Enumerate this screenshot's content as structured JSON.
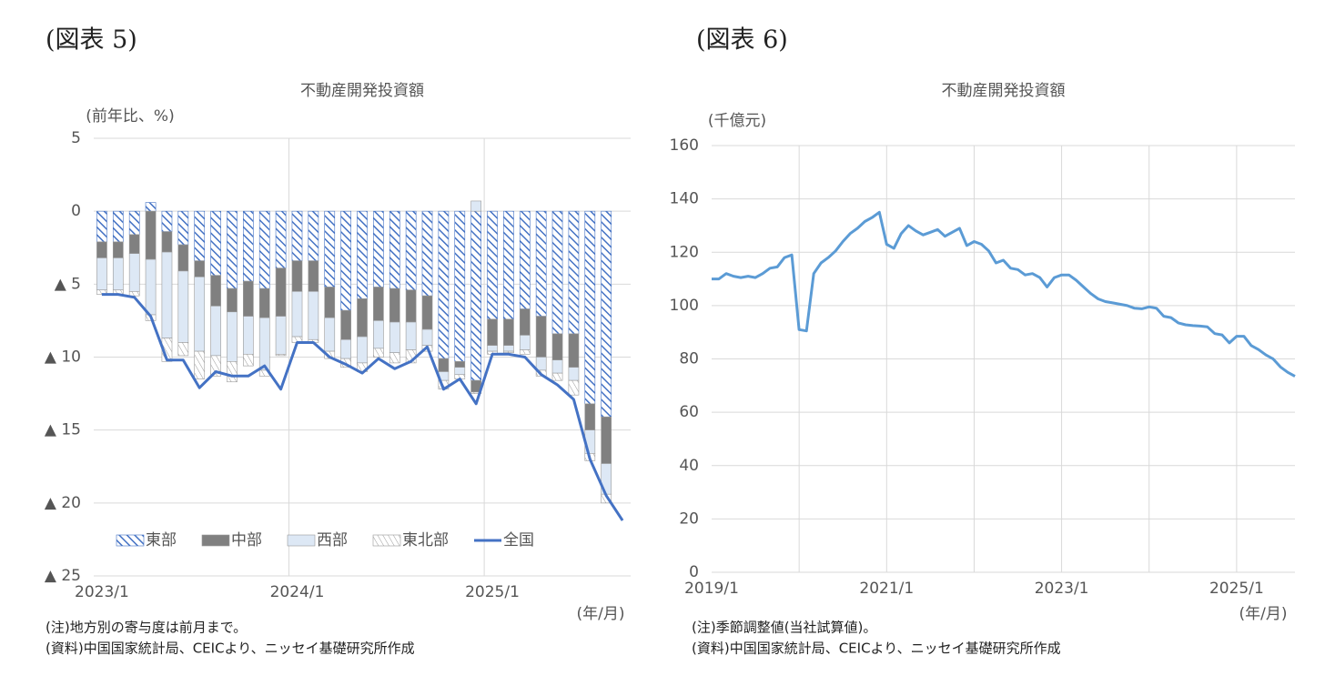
{
  "chart_data": [
    {
      "type": "bar",
      "figure_label": "(図表 5)",
      "title": "不動産開発投資額",
      "y_label": "(前年比、%)",
      "x_label": "(年/月)",
      "notes": [
        "(注)地方別の寄与度は前月まで。",
        "(資料)中国国家統計局、CEICより、ニッセイ基礎研究所作成"
      ],
      "categories": [
        "2023/1",
        null,
        null,
        null,
        null,
        null,
        null,
        null,
        null,
        null,
        null,
        null,
        "2024/1",
        null,
        null,
        null,
        null,
        null,
        null,
        null,
        null,
        null,
        null,
        null,
        "2025/1",
        null,
        null,
        null,
        null,
        null,
        null,
        null,
        null
      ],
      "series": [
        {
          "name": "東部",
          "color": "#4472c4",
          "fill_style": "hatch",
          "values": [
            -2.1,
            -2.1,
            -1.6,
            0.6,
            -1.4,
            -2.3,
            -3.4,
            -4.4,
            -5.3,
            -4.8,
            -5.3,
            -3.9,
            -3.4,
            -3.4,
            -5.2,
            -6.8,
            -6.0,
            -5.2,
            -5.3,
            -5.4,
            -5.8,
            -10.1,
            -10.3,
            -11.6,
            -7.4,
            -7.4,
            -6.7,
            -7.2,
            -8.4,
            -8.4,
            -13.2,
            -14.1,
            null
          ]
        },
        {
          "name": "中部",
          "color": "#808080",
          "fill_style": "solid",
          "values": [
            -1.1,
            -1.1,
            -1.3,
            -3.3,
            -1.4,
            -1.8,
            -1.1,
            -2.1,
            -1.6,
            -2.4,
            -2.0,
            -3.3,
            -2.1,
            -2.1,
            -2.1,
            -2.0,
            -2.6,
            -2.3,
            -2.3,
            -2.2,
            -2.3,
            -0.9,
            -0.4,
            -0.8,
            -1.8,
            -1.8,
            -1.8,
            -2.8,
            -1.8,
            -2.3,
            -1.8,
            -3.2,
            null
          ]
        },
        {
          "name": "西部",
          "color": "#dde8f5",
          "fill_style": "solid",
          "values": [
            -2.2,
            -2.2,
            -2.6,
            -3.8,
            -5.9,
            -4.9,
            -5.1,
            -3.4,
            -3.4,
            -2.6,
            -3.6,
            -2.6,
            -3.1,
            -3.3,
            -2.3,
            -1.3,
            -1.8,
            -1.9,
            -2.1,
            -1.9,
            -1.1,
            -0.6,
            -0.5,
            0.7,
            -0.4,
            -0.4,
            -1.0,
            -0.9,
            -0.9,
            -0.9,
            -1.6,
            -2.1,
            null
          ]
        },
        {
          "name": "東北部",
          "color": "#7f7f7f",
          "fill_style": "dots",
          "values": [
            -0.3,
            -0.3,
            -0.3,
            -0.4,
            -1.6,
            -0.9,
            -1.9,
            -1.4,
            -1.4,
            -0.8,
            -0.4,
            -0.1,
            -0.4,
            -0.2,
            -0.5,
            -0.6,
            -0.6,
            -0.6,
            -0.7,
            -0.9,
            -0.4,
            -0.6,
            -0.3,
            -0.1,
            -0.2,
            -0.1,
            -0.3,
            -0.4,
            -0.5,
            -1.0,
            -0.5,
            -0.6,
            null
          ]
        },
        {
          "name": "全国",
          "color": "#4472c4",
          "type": "line",
          "values": [
            -5.7,
            -5.7,
            -5.9,
            -7.2,
            -10.2,
            -10.2,
            -12.1,
            -11.0,
            -11.3,
            -11.3,
            -10.6,
            -12.2,
            -9.0,
            -9.0,
            -10.0,
            -10.5,
            -11.1,
            -10.1,
            -10.8,
            -10.3,
            -9.3,
            -12.2,
            -11.5,
            -13.2,
            -9.8,
            -9.8,
            -10.0,
            -11.2,
            -11.9,
            -12.9,
            -17.0,
            -19.5,
            -21.2
          ]
        }
      ],
      "ylim": [
        -25,
        5
      ],
      "yticks": [
        {
          "value": -25,
          "label": "▲ 25"
        },
        {
          "value": -20,
          "label": "▲ 20"
        },
        {
          "value": -15,
          "label": "▲ 15"
        },
        {
          "value": -10,
          "label": "▲ 10"
        },
        {
          "value": -5,
          "label": "▲ 5"
        },
        0,
        5
      ],
      "grid": true,
      "legend": "bottom-left"
    },
    {
      "type": "line",
      "figure_label": "(図表 6)",
      "title": "不動産開発投資額",
      "y_label": "(千億元)",
      "x_label": "(年/月)",
      "notes": [
        "(注)季節調整値(当社試算値)。",
        "(資料)中国国家統計局、CEICより、ニッセイ基礎研究所作成"
      ],
      "categories": [
        "2019/1",
        null,
        null,
        null,
        null,
        null,
        null,
        null,
        null,
        null,
        null,
        null,
        null,
        null,
        null,
        null,
        null,
        null,
        null,
        null,
        null,
        null,
        null,
        null,
        "2021/1",
        null,
        null,
        null,
        null,
        null,
        null,
        null,
        null,
        null,
        null,
        null,
        null,
        null,
        null,
        null,
        null,
        null,
        null,
        null,
        null,
        null,
        null,
        null,
        "2023/1",
        null,
        null,
        null,
        null,
        null,
        null,
        null,
        null,
        null,
        null,
        null,
        null,
        null,
        null,
        null,
        null,
        null,
        null,
        null,
        null,
        null,
        null,
        null,
        "2025/1",
        null,
        null,
        null,
        null,
        null,
        null,
        null,
        null
      ],
      "color": "#5b9bd5",
      "values": [
        110,
        110,
        112,
        111,
        110.5,
        111,
        110.5,
        112,
        114,
        114.5,
        118,
        119,
        91,
        90.5,
        112,
        116,
        118,
        120.5,
        124,
        127,
        129,
        131.5,
        133,
        135,
        123,
        121.5,
        127,
        130,
        128,
        126.5,
        127.5,
        128.5,
        126,
        127.5,
        129,
        122.5,
        124,
        123,
        120.5,
        116,
        117,
        114,
        113.5,
        111.5,
        112,
        110.5,
        107,
        110.5,
        111.5,
        111.5,
        109.5,
        107,
        104.5,
        102.5,
        101.5,
        101,
        100.5,
        100,
        99,
        98.8,
        99.5,
        99,
        96,
        95.5,
        93.5,
        92.8,
        92.5,
        92.3,
        92,
        89.5,
        89,
        86,
        88.5,
        88.5,
        85,
        83.5,
        81.5,
        80,
        77,
        75,
        73.5
      ],
      "ylim": [
        0,
        160
      ],
      "yticks": [
        0,
        20,
        40,
        60,
        80,
        100,
        120,
        140,
        160
      ],
      "grid": true
    }
  ]
}
